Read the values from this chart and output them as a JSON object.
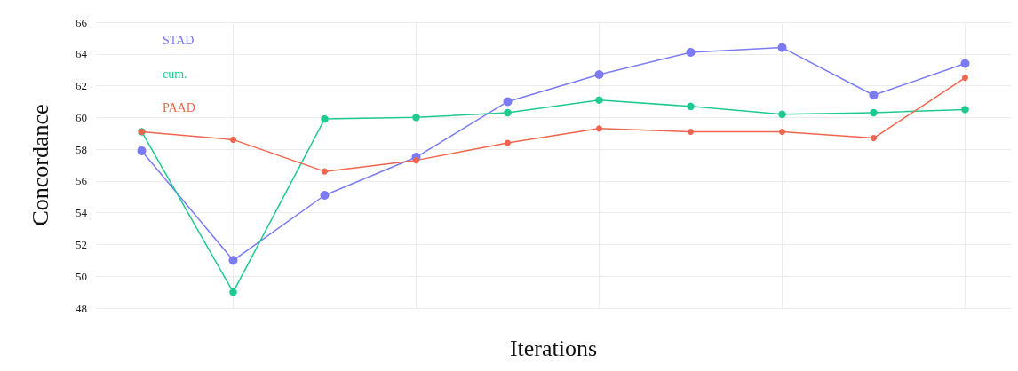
{
  "chart_data": {
    "type": "line",
    "xlabel": "Iterations",
    "ylabel": "Concordance",
    "categories": [
      null,
      null,
      null,
      null,
      null,
      null,
      null,
      null,
      null,
      null
    ],
    "series": [
      {
        "name": "STAD",
        "color": "#7b7cf5",
        "values": [
          57.9,
          51.0,
          55.1,
          57.5,
          61.0,
          62.7,
          64.1,
          64.4,
          61.4,
          63.4
        ]
      },
      {
        "name": "cum.",
        "color": "#1fca8f",
        "values": [
          59.1,
          49.0,
          59.9,
          60.0,
          60.3,
          61.1,
          60.7,
          60.2,
          60.3,
          60.5
        ]
      },
      {
        "name": "PAAD",
        "color": "#f0654e",
        "values": [
          59.1,
          58.6,
          56.6,
          57.3,
          58.4,
          59.3,
          59.1,
          59.1,
          58.7,
          62.5
        ]
      }
    ],
    "ylim": [
      48,
      66
    ],
    "yticks": [
      48,
      50,
      52,
      54,
      56,
      58,
      60,
      62,
      64,
      66
    ],
    "grid": true,
    "marker": "circle",
    "line_style": "solid"
  }
}
